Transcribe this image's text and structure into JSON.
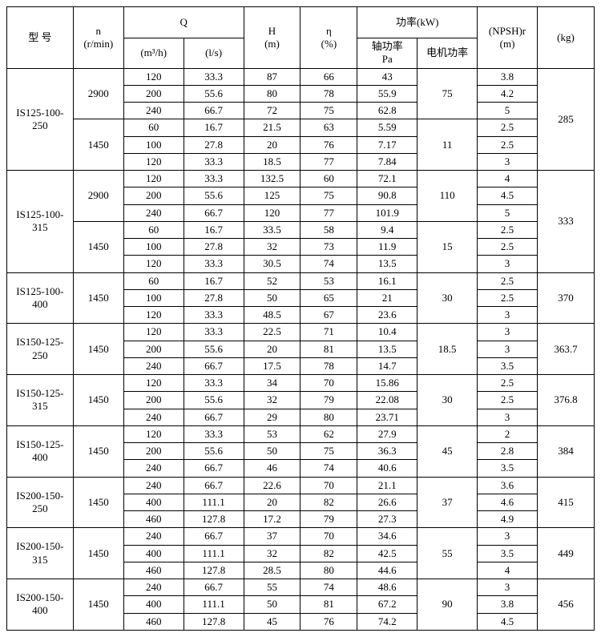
{
  "headers": {
    "model": "型  号",
    "n": "n",
    "n_unit": "(r/min)",
    "Q": "Q",
    "Q_m3h": "(m³/h)",
    "Q_ls": "(l/s)",
    "H": "H",
    "H_unit": "(m)",
    "eta": "η",
    "eta_unit": "(%)",
    "power": "功率(kW)",
    "shaft_power": "轴功率",
    "Pa": "Pa",
    "motor_power": "电机功率",
    "npsh": "(NPSH)r",
    "npsh_unit": "(m)",
    "kg": "(kg)"
  },
  "blocks": [
    {
      "model": "IS125-100-250",
      "weight": "285",
      "groups": [
        {
          "n": "2900",
          "motor": "75",
          "rows": [
            [
              "120",
              "33.3",
              "87",
              "66",
              "43",
              "3.8"
            ],
            [
              "200",
              "55.6",
              "80",
              "78",
              "55.9",
              "4.2"
            ],
            [
              "240",
              "66.7",
              "72",
              "75",
              "62.8",
              "5"
            ]
          ]
        },
        {
          "n": "1450",
          "motor": "11",
          "rows": [
            [
              "60",
              "16.7",
              "21.5",
              "63",
              "5.59",
              "2.5"
            ],
            [
              "100",
              "27.8",
              "20",
              "76",
              "7.17",
              "2.5"
            ],
            [
              "120",
              "33.3",
              "18.5",
              "77",
              "7.84",
              "3"
            ]
          ]
        }
      ]
    },
    {
      "model": "IS125-100-315",
      "weight": "333",
      "groups": [
        {
          "n": "2900",
          "motor": "110",
          "rows": [
            [
              "120",
              "33.3",
              "132.5",
              "60",
              "72.1",
              "4"
            ],
            [
              "200",
              "55.6",
              "125",
              "75",
              "90.8",
              "4.5"
            ],
            [
              "240",
              "66.7",
              "120",
              "77",
              "101.9",
              "5"
            ]
          ]
        },
        {
          "n": "1450",
          "motor": "15",
          "rows": [
            [
              "60",
              "16.7",
              "33.5",
              "58",
              "9.4",
              "2.5"
            ],
            [
              "100",
              "27.8",
              "32",
              "73",
              "11.9",
              "2.5"
            ],
            [
              "120",
              "33.3",
              "30.5",
              "74",
              "13.5",
              "3"
            ]
          ]
        }
      ]
    },
    {
      "model": "IS125-100-400",
      "weight": "370",
      "groups": [
        {
          "n": "1450",
          "motor": "30",
          "rows": [
            [
              "60",
              "16.7",
              "52",
              "53",
              "16.1",
              "2.5"
            ],
            [
              "100",
              "27.8",
              "50",
              "65",
              "21",
              "2.5"
            ],
            [
              "120",
              "33.3",
              "48.5",
              "67",
              "23.6",
              "3"
            ]
          ]
        }
      ]
    },
    {
      "model": "IS150-125-250",
      "weight": "363.7",
      "groups": [
        {
          "n": "1450",
          "motor": "18.5",
          "rows": [
            [
              "120",
              "33.3",
              "22.5",
              "71",
              "10.4",
              "3"
            ],
            [
              "200",
              "55.6",
              "20",
              "81",
              "13.5",
              "3"
            ],
            [
              "240",
              "66.7",
              "17.5",
              "78",
              "14.7",
              "3.5"
            ]
          ]
        }
      ]
    },
    {
      "model": "IS150-125-315",
      "weight": "376.8",
      "groups": [
        {
          "n": "1450",
          "motor": "30",
          "rows": [
            [
              "120",
              "33.3",
              "34",
              "70",
              "15.86",
              "2.5"
            ],
            [
              "200",
              "55.6",
              "32",
              "79",
              "22.08",
              "2.5"
            ],
            [
              "240",
              "66.7",
              "29",
              "80",
              "23.71",
              "3"
            ]
          ]
        }
      ]
    },
    {
      "model": "IS150-125-400",
      "weight": "384",
      "groups": [
        {
          "n": "1450",
          "motor": "45",
          "rows": [
            [
              "120",
              "33.3",
              "53",
              "62",
              "27.9",
              "2"
            ],
            [
              "200",
              "55.6",
              "50",
              "75",
              "36.3",
              "2.8"
            ],
            [
              "240",
              "66.7",
              "46",
              "74",
              "40.6",
              "3.5"
            ]
          ]
        }
      ]
    },
    {
      "model": "IS200-150-250",
      "weight": "415",
      "groups": [
        {
          "n": "1450",
          "motor": "37",
          "rows": [
            [
              "240",
              "66.7",
              "22.6",
              "70",
              "21.1",
              "3.6"
            ],
            [
              "400",
              "111.1",
              "20",
              "82",
              "26.6",
              "4.6"
            ],
            [
              "460",
              "127.8",
              "17.2",
              "79",
              "27.3",
              "4.9"
            ]
          ]
        }
      ]
    },
    {
      "model": "IS200-150-315",
      "weight": "449",
      "groups": [
        {
          "n": "1450",
          "motor": "55",
          "rows": [
            [
              "240",
              "66.7",
              "37",
              "70",
              "34.6",
              "3"
            ],
            [
              "400",
              "111.1",
              "32",
              "82",
              "42.5",
              "3.5"
            ],
            [
              "460",
              "127.8",
              "28.5",
              "80",
              "44.6",
              "4"
            ]
          ]
        }
      ]
    },
    {
      "model": "IS200-150-400",
      "weight": "456",
      "groups": [
        {
          "n": "1450",
          "motor": "90",
          "rows": [
            [
              "240",
              "66.7",
              "55",
              "74",
              "48.6",
              "3"
            ],
            [
              "400",
              "111.1",
              "50",
              "81",
              "67.2",
              "3.8"
            ],
            [
              "460",
              "127.8",
              "45",
              "76",
              "74.2",
              "4.5"
            ]
          ]
        }
      ]
    }
  ]
}
